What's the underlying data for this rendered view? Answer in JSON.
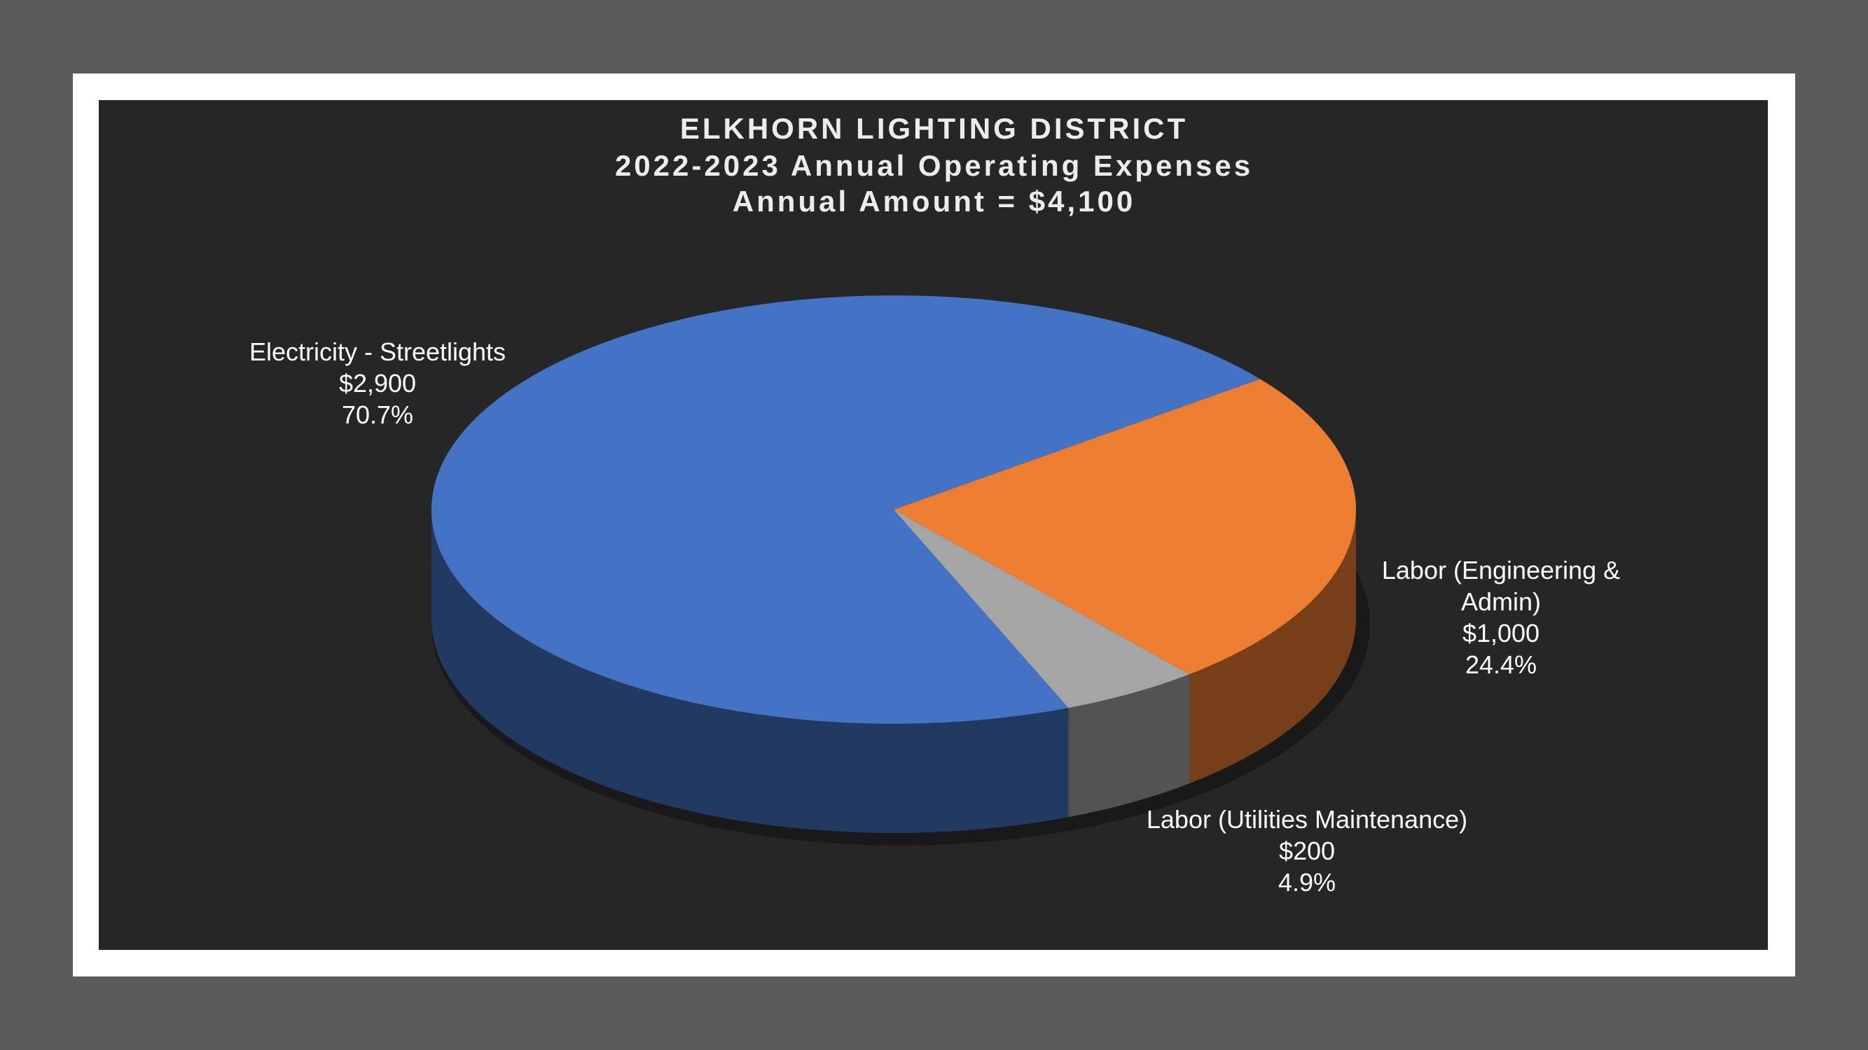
{
  "chart_data": {
    "type": "pie3d",
    "title": "ELKHORN LIGHTING DISTRICT",
    "subtitle": [
      "2022-2023 Annual Operating Expenses",
      "Annual Amount = $4,100"
    ],
    "categories": [
      "Electricity - Streetlights",
      "Labor (Engineering & Admin)",
      "Labor (Utilities Maintenance)"
    ],
    "values": [
      2900,
      1000,
      200
    ],
    "value_labels": [
      "$2,900",
      "$1,000",
      "$200"
    ],
    "percentages": [
      70.7,
      24.4,
      4.9
    ],
    "percentage_labels": [
      "70.7%",
      "24.4%",
      "4.9%"
    ],
    "colors": [
      "#4472c4",
      "#ed7d31",
      "#a5a5a5"
    ]
  }
}
